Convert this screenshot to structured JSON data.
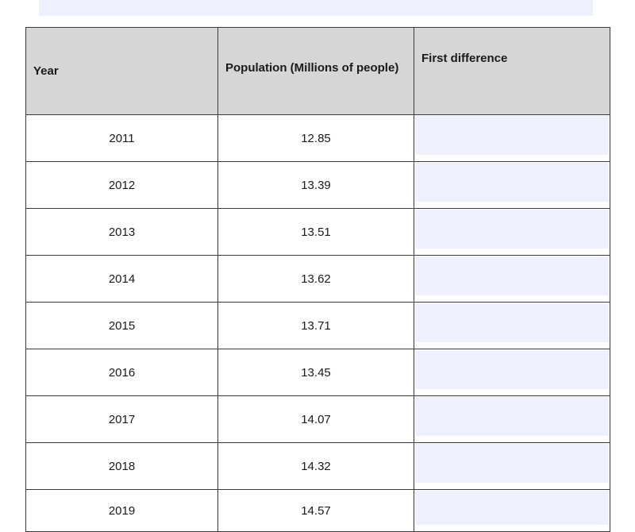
{
  "top_input": {
    "value": ""
  },
  "table": {
    "headers": {
      "year": "Year",
      "population": "Population (Millions of people)",
      "first_difference": "First difference"
    },
    "rows": [
      {
        "year": "2011",
        "population": "12.85",
        "first_difference": ""
      },
      {
        "year": "2012",
        "population": "13.39",
        "first_difference": ""
      },
      {
        "year": "2013",
        "population": "13.51",
        "first_difference": ""
      },
      {
        "year": "2014",
        "population": "13.62",
        "first_difference": ""
      },
      {
        "year": "2015",
        "population": "13.71",
        "first_difference": ""
      },
      {
        "year": "2016",
        "population": "13.45",
        "first_difference": ""
      },
      {
        "year": "2017",
        "population": "14.07",
        "first_difference": ""
      },
      {
        "year": "2018",
        "population": "14.32",
        "first_difference": ""
      },
      {
        "year": "2019",
        "population": "14.57",
        "first_difference": ""
      }
    ]
  },
  "colors": {
    "header_background": "#d6d6d6",
    "input_background": "#eef1fd",
    "border": "#3a3a3a"
  }
}
